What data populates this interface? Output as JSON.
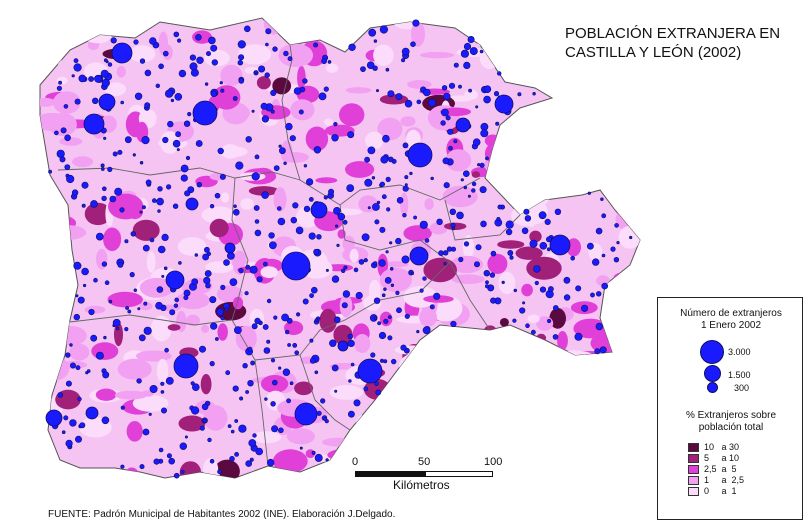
{
  "title": {
    "line1": "POBLACIÓN EXTRANJERA EN",
    "line2": "CASTILLA Y LEÓN (2002)"
  },
  "legend": {
    "circles_title_line1": "Número de extranjeros",
    "circles_title_line2": "1 Enero 2002",
    "circle_values": [
      {
        "label": "3.000",
        "value": 3000
      },
      {
        "label": "1.500",
        "value": 1500
      },
      {
        "label": "300",
        "value": 300
      }
    ],
    "classes_title_line1": "% Extranjeros sobre",
    "classes_title_line2": "población total",
    "classes": [
      {
        "label": "10   a 30",
        "color": "#5a0a3e"
      },
      {
        "label": "5     a 10",
        "color": "#a0207a"
      },
      {
        "label": "2,5  a  5",
        "color": "#e040d8"
      },
      {
        "label": "1     a  2,5",
        "color": "#f2a0f2"
      },
      {
        "label": "0     a  1",
        "color": "#fbdcfb"
      }
    ]
  },
  "scale": {
    "ticks": [
      "0",
      "50",
      "100"
    ],
    "unit": "Kilómetros"
  },
  "source": "FUENTE: Padrón Municipal de Habitantes 2002 (INE). Elaboración J.Delgado.",
  "colors": {
    "circle_fill": "#1a1aff",
    "circle_stroke": "#101060",
    "province_border": "#666666"
  }
}
